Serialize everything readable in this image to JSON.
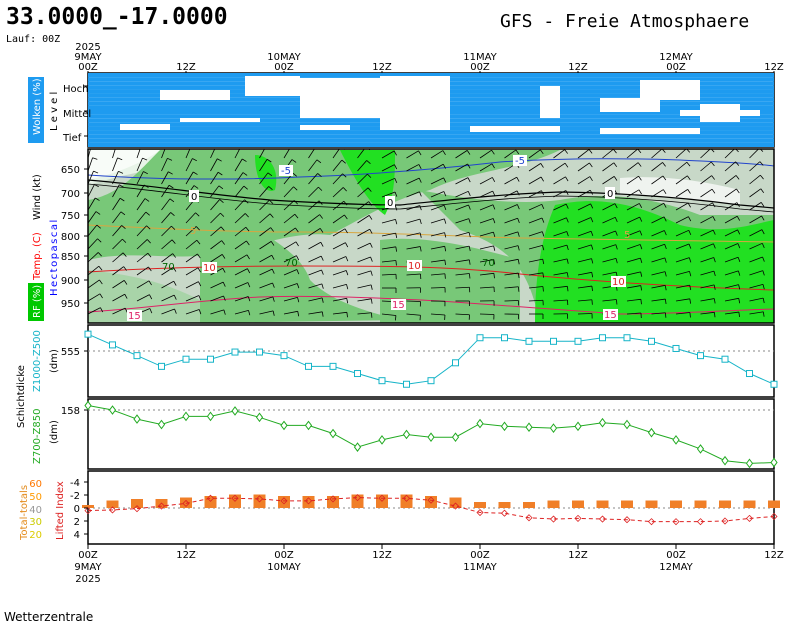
{
  "header": {
    "coords": "33.0000_-17.0000",
    "title": "GFS  -  Freie Atmosphaere",
    "run": "Lauf: 00Z",
    "footer": "Wetterzentrale"
  },
  "time_axis": {
    "top_ticks": [
      "00Z",
      "12Z",
      "00Z",
      "12Z",
      "00Z",
      "12Z",
      "00Z",
      "12Z"
    ],
    "top_dates": [
      {
        "d": "9MAY",
        "y": "2025"
      },
      {
        "d": "10MAY",
        "y": ""
      },
      {
        "d": "11MAY",
        "y": ""
      },
      {
        "d": "12MAY",
        "y": ""
      }
    ],
    "bottom_ticks": [
      "00Z",
      "12Z",
      "00Z",
      "12Z",
      "00Z",
      "12Z",
      "00Z",
      "12Z"
    ],
    "bottom_dates": [
      {
        "d": "9MAY",
        "y": "2025"
      },
      {
        "d": "10MAY",
        "y": ""
      },
      {
        "d": "11MAY",
        "y": ""
      },
      {
        "d": "12MAY",
        "y": ""
      }
    ]
  },
  "panels": {
    "clouds": {
      "side_label": "Wolken (%)",
      "level_label": "L e v e l",
      "levels": [
        "Hoch",
        "Mittel",
        "Tief"
      ],
      "color": "#1e9bf0"
    },
    "wind": {
      "side_labels": {
        "rh": "RF (%)",
        "temp": "Temp. (C)",
        "hpa": "Hectopascal",
        "wind": "Wind (kt)"
      },
      "colors": {
        "rh": "#00c800",
        "temp": "#ff0000",
        "hpa": "#0000ff"
      },
      "pressure_ticks": [
        "650",
        "700",
        "750",
        "800",
        "850",
        "900",
        "950"
      ],
      "isotherm_labels": [
        "-5",
        "0",
        "5",
        "10",
        "15"
      ],
      "rh_labels": [
        "70"
      ]
    },
    "thickness": {
      "group_label": "Schichtdicke",
      "z1000_label": "Z1000-Z500",
      "z700_label": "Z700-Z850",
      "unit": "(dm)",
      "z1000_ref": "555",
      "z700_ref": "158",
      "z1000_color": "#16b4c8",
      "z700_color": "#22aa22"
    },
    "stability": {
      "tt_label": "Total-totals",
      "li_label": "Lifted Index",
      "tt_ticks": [
        "60",
        "50",
        "40",
        "30",
        "20"
      ],
      "li_ticks": [
        "-4",
        "-2",
        "0",
        "2",
        "4"
      ],
      "tt_colors": [
        "#ff7700",
        "#ff9900",
        "#999999",
        "#cccc00",
        "#ddcc00"
      ],
      "li_color": "#dd2222",
      "bar_color": "#f07f28"
    }
  },
  "chart_data": [
    {
      "type": "line",
      "title": "Z1000-Z500",
      "x": [
        "00Z",
        "03Z",
        "06Z",
        "09Z",
        "12Z",
        "15Z",
        "18Z",
        "21Z",
        "00Z",
        "03Z",
        "06Z",
        "09Z",
        "12Z",
        "15Z",
        "18Z",
        "21Z",
        "00Z",
        "03Z",
        "06Z",
        "09Z",
        "12Z",
        "15Z",
        "18Z",
        "21Z",
        "00Z",
        "03Z",
        "06Z",
        "09Z",
        "12Z"
      ],
      "values": [
        558,
        555,
        552,
        549,
        551,
        551,
        553,
        553,
        552,
        549,
        549,
        547,
        545,
        544,
        545,
        550,
        557,
        557,
        556,
        556,
        556,
        557,
        557,
        556,
        554,
        552,
        551,
        547,
        544
      ],
      "ylim": [
        541,
        560
      ],
      "reference": 555
    },
    {
      "type": "line",
      "title": "Z700-Z850",
      "x": [
        "00Z",
        "03Z",
        "06Z",
        "09Z",
        "12Z",
        "15Z",
        "18Z",
        "21Z",
        "00Z",
        "03Z",
        "06Z",
        "09Z",
        "12Z",
        "15Z",
        "18Z",
        "21Z",
        "00Z",
        "03Z",
        "06Z",
        "09Z",
        "12Z",
        "15Z",
        "18Z",
        "21Z",
        "00Z",
        "03Z",
        "06Z",
        "09Z",
        "12Z"
      ],
      "values": [
        158.4,
        157.9,
        156.9,
        156.3,
        157.2,
        157.2,
        157.8,
        157.1,
        156.2,
        156.2,
        155.3,
        153.8,
        154.6,
        155.2,
        154.9,
        154.9,
        156.4,
        156.1,
        156.0,
        155.9,
        156.1,
        156.5,
        156.3,
        155.4,
        154.6,
        153.6,
        152.3,
        152.0,
        152.1
      ],
      "ylim": [
        151.6,
        158.9
      ],
      "reference": 158
    },
    {
      "type": "bar",
      "title": "Total-totals",
      "x": [
        "00Z",
        "03Z",
        "06Z",
        "09Z",
        "12Z",
        "15Z",
        "18Z",
        "21Z",
        "00Z",
        "03Z",
        "06Z",
        "09Z",
        "12Z",
        "15Z",
        "18Z",
        "21Z",
        "00Z",
        "03Z",
        "06Z",
        "09Z",
        "12Z",
        "15Z",
        "18Z",
        "21Z",
        "00Z",
        "03Z",
        "06Z",
        "09Z",
        "12Z"
      ],
      "values": [
        42,
        45,
        46,
        46,
        47,
        48,
        49,
        49,
        48,
        48,
        48,
        49,
        49,
        49,
        48,
        47,
        44,
        44,
        44,
        45,
        45,
        45,
        45,
        45,
        45,
        45,
        45,
        45,
        45
      ],
      "baseline": 40
    },
    {
      "type": "line",
      "title": "Lifted Index",
      "x": [
        "00Z",
        "03Z",
        "06Z",
        "09Z",
        "12Z",
        "15Z",
        "18Z",
        "21Z",
        "00Z",
        "03Z",
        "06Z",
        "09Z",
        "12Z",
        "15Z",
        "18Z",
        "21Z",
        "00Z",
        "03Z",
        "06Z",
        "09Z",
        "12Z",
        "15Z",
        "18Z",
        "21Z",
        "00Z",
        "03Z",
        "06Z",
        "09Z",
        "12Z"
      ],
      "values": [
        0.4,
        0.3,
        0.1,
        -0.3,
        -0.7,
        -1.5,
        -1.5,
        -1.4,
        -1.1,
        -1.1,
        -1.4,
        -1.6,
        -1.5,
        -1.5,
        -1.2,
        -0.3,
        0.7,
        0.8,
        1.5,
        1.7,
        1.6,
        1.7,
        1.8,
        2.1,
        2.1,
        2.1,
        2.0,
        1.6,
        1.3
      ],
      "ylim": [
        -5,
        5
      ]
    }
  ]
}
